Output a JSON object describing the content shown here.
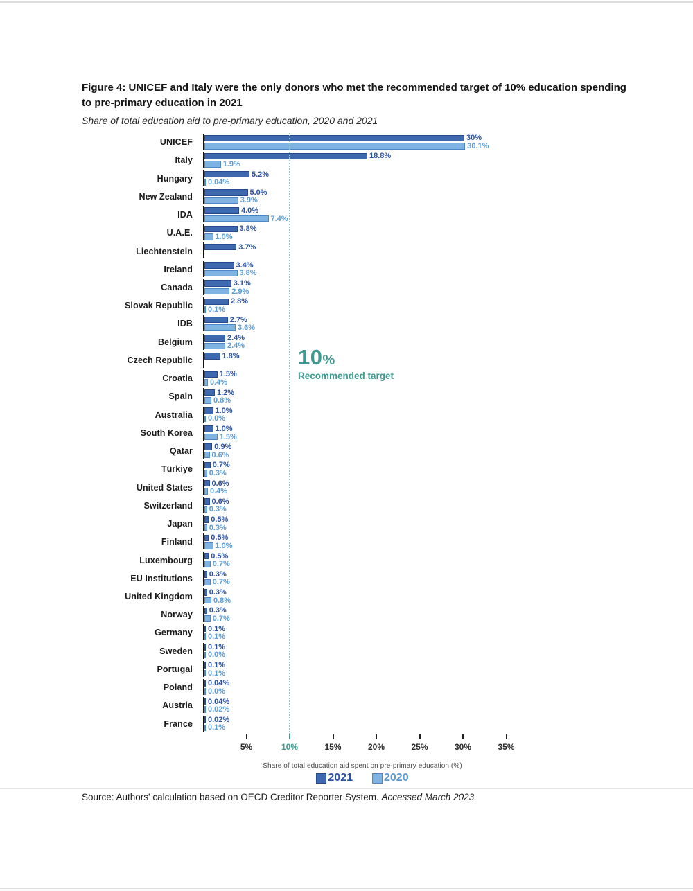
{
  "figure": {
    "title": "Figure 4: UNICEF and Italy were the only donors who met the recommended target of 10% education spending to pre-primary education in 2021",
    "subtitle": "Share of total education aid to pre-primary education, 2020 and 2021",
    "source_prefix": "Source: Authors' calculation based on OECD Creditor Reporter System. ",
    "source_italic": "Accessed March 2023."
  },
  "colors": {
    "bar_2021": "#3e69af",
    "bar_2021_border": "#24498f",
    "bar_2020": "#7fb3e2",
    "bar_2020_border": "#4a86c8",
    "label_2021": "#2a52a2",
    "label_2020": "#5b9bd5",
    "target": "#3e9a90",
    "target_line": "#8fc8c2"
  },
  "chart_data": {
    "type": "bar",
    "orientation": "horizontal",
    "title": "Share of total education aid to pre-primary education, 2020 and 2021",
    "xlabel": "Share of total education aid spent on pre-primary education (%)",
    "xlim": [
      0,
      37
    ],
    "xticks": [
      5,
      10,
      15,
      20,
      25,
      30,
      35
    ],
    "xtick_labels": [
      "5%",
      "10%",
      "15%",
      "20%",
      "25%",
      "30%",
      "35%"
    ],
    "grid": false,
    "legend_position": "bottom",
    "target_line": {
      "value": 10,
      "label_big": "10",
      "label_pct": "%",
      "sublabel": "Recommended target"
    },
    "categories": [
      "UNICEF",
      "Italy",
      "Hungary",
      "New Zealand",
      "IDA",
      "U.A.E.",
      "Liechtenstein",
      "Ireland",
      "Canada",
      "Slovak Republic",
      "IDB",
      "Belgium",
      "Czech Republic",
      "Croatia",
      "Spain",
      "Australia",
      "South Korea",
      "Qatar",
      "Türkiye",
      "United States",
      "Switzerland",
      "Japan",
      "Finland",
      "Luxembourg",
      "EU Institutions",
      "United Kingdom",
      "Norway",
      "Germany",
      "Sweden",
      "Portugal",
      "Poland",
      "Austria",
      "France"
    ],
    "series": [
      {
        "name": "2021",
        "values": [
          30,
          18.8,
          5.2,
          5.0,
          4.0,
          3.8,
          3.7,
          3.4,
          3.1,
          2.8,
          2.7,
          2.4,
          1.8,
          1.5,
          1.2,
          1.0,
          1.0,
          0.9,
          0.7,
          0.6,
          0.6,
          0.5,
          0.5,
          0.5,
          0.3,
          0.3,
          0.3,
          0.1,
          0.1,
          0.1,
          0.04,
          0.04,
          0.02
        ],
        "labels": [
          "30%",
          "18.8%",
          "5.2%",
          "5.0%",
          "4.0%",
          "3.8%",
          "3.7%",
          "3.4%",
          "3.1%",
          "2.8%",
          "2.7%",
          "2.4%",
          "1.8%",
          "1.5%",
          "1.2%",
          "1.0%",
          "1.0%",
          "0.9%",
          "0.7%",
          "0.6%",
          "0.6%",
          "0.5%",
          "0.5%",
          "0.5%",
          "0.3%",
          "0.3%",
          "0.3%",
          "0.1%",
          "0.1%",
          "0.1%",
          "0.04%",
          "0.04%",
          "0.02%"
        ]
      },
      {
        "name": "2020",
        "values": [
          30.1,
          1.9,
          0.04,
          3.9,
          7.4,
          1.0,
          null,
          3.8,
          2.9,
          0.1,
          3.6,
          2.4,
          null,
          0.4,
          0.8,
          0.0,
          1.5,
          0.6,
          0.3,
          0.4,
          0.3,
          0.3,
          1.0,
          0.7,
          0.7,
          0.8,
          0.7,
          0.1,
          0.0,
          0.1,
          0.0,
          0.02,
          0.1
        ],
        "labels": [
          "30.1%",
          "1.9%",
          "0.04%",
          "3.9%",
          "7.4%",
          "1.0%",
          null,
          "3.8%",
          "2.9%",
          "0.1%",
          "3.6%",
          "2.4%",
          null,
          "0.4%",
          "0.8%",
          "0.0%",
          "1.5%",
          "0.6%",
          "0.3%",
          "0.4%",
          "0.3%",
          "0.3%",
          "1.0%",
          "0.7%",
          "0.7%",
          "0.8%",
          "0.7%",
          "0.1%",
          "0.0%",
          "0.1%",
          "0.0%",
          "0.02%",
          "0.1%"
        ]
      }
    ]
  }
}
